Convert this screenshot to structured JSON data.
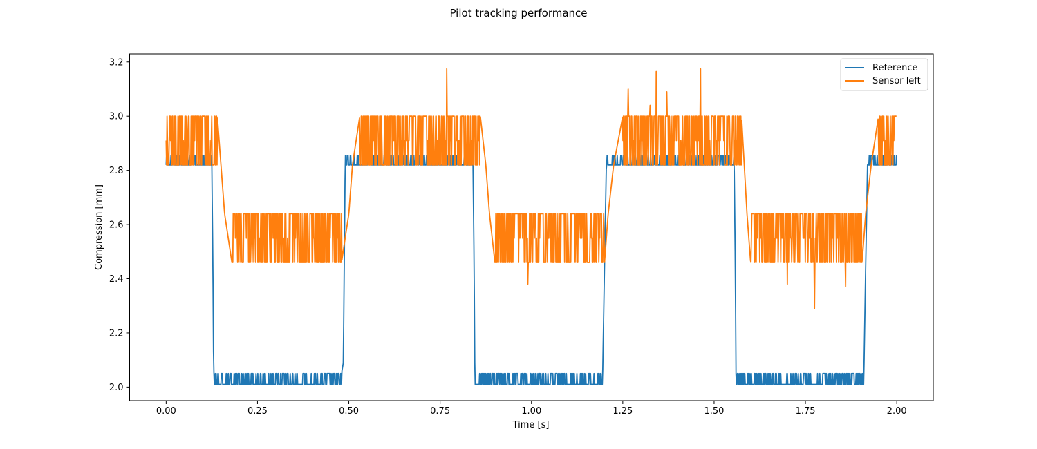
{
  "figure": {
    "title": "Pilot tracking performance"
  },
  "chart_data": {
    "type": "line",
    "title": "Pilot tracking performance",
    "xlabel": "Time [s]",
    "ylabel": "Compression [mm]",
    "xlim": [
      -0.1,
      2.1
    ],
    "ylim": [
      1.95,
      3.23
    ],
    "xticks": [
      0.0,
      0.25,
      0.5,
      0.75,
      1.0,
      1.25,
      1.5,
      1.75,
      2.0
    ],
    "xtick_labels": [
      "0.00",
      "0.25",
      "0.50",
      "0.75",
      "1.00",
      "1.25",
      "1.50",
      "1.75",
      "2.00"
    ],
    "yticks": [
      2.0,
      2.2,
      2.4,
      2.6,
      2.8,
      3.0,
      3.2
    ],
    "ytick_labels": [
      "2.0",
      "2.2",
      "2.4",
      "2.6",
      "2.8",
      "3.0",
      "3.2"
    ],
    "grid": false,
    "legend_position": "top-right",
    "series": [
      {
        "name": "Reference",
        "color": "#1f77b4",
        "x": [
          0.0,
          0.125,
          0.128,
          0.13,
          0.48,
          0.485,
          0.49,
          0.84,
          0.843,
          0.845,
          1.195,
          1.2,
          1.205,
          1.555,
          1.558,
          1.56,
          1.91,
          1.915,
          1.92,
          2.0
        ],
        "y": [
          2.82,
          2.82,
          2.45,
          2.05,
          2.05,
          2.09,
          2.82,
          2.82,
          2.45,
          2.05,
          2.05,
          2.45,
          2.82,
          2.82,
          2.45,
          2.05,
          2.05,
          2.45,
          2.82,
          2.82
        ],
        "noise": {
          "high_levels": [
            2.82,
            2.855
          ],
          "low_levels": [
            2.01,
            2.05
          ]
        }
      },
      {
        "name": "Sensor left",
        "color": "#ff7f0e",
        "x": [
          0.0,
          0.14,
          0.15,
          0.16,
          0.18,
          0.48,
          0.49,
          0.5,
          0.51,
          0.53,
          0.86,
          0.875,
          0.885,
          0.9,
          1.2,
          1.21,
          1.225,
          1.25,
          1.575,
          1.59,
          1.6,
          1.905,
          1.915,
          1.93,
          1.95,
          2.0
        ],
        "y": [
          3.0,
          3.0,
          2.82,
          2.64,
          2.46,
          2.46,
          2.55,
          2.64,
          2.82,
          3.0,
          3.0,
          2.82,
          2.64,
          2.46,
          2.46,
          2.64,
          2.82,
          3.0,
          3.0,
          2.64,
          2.46,
          2.46,
          2.64,
          2.82,
          3.0,
          3.0
        ],
        "noise": {
          "high_levels": [
            2.82,
            3.0
          ],
          "low_levels": [
            2.46,
            2.64
          ]
        },
        "spikes": [
          {
            "x": 0.768,
            "y": 3.175
          },
          {
            "x": 0.99,
            "y": 2.38
          },
          {
            "x": 1.265,
            "y": 3.1
          },
          {
            "x": 1.325,
            "y": 3.04
          },
          {
            "x": 1.342,
            "y": 3.165
          },
          {
            "x": 1.37,
            "y": 3.09
          },
          {
            "x": 1.463,
            "y": 3.175
          },
          {
            "x": 1.7,
            "y": 2.38
          },
          {
            "x": 1.775,
            "y": 2.29
          },
          {
            "x": 1.86,
            "y": 2.37
          }
        ]
      }
    ]
  }
}
